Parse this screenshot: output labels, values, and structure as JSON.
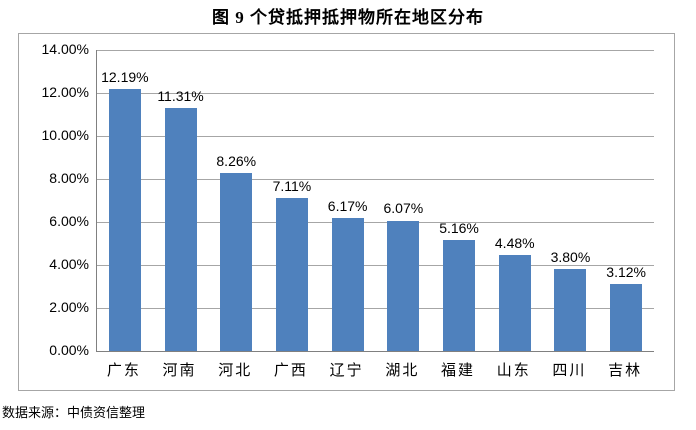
{
  "page": {
    "title": "图 9 个贷抵押抵押物所在地区分布",
    "source_note": "数据来源：中债资信整理"
  },
  "chart_data": {
    "type": "bar",
    "title": "图 9 个贷抵押抵押物所在地区分布",
    "categories": [
      "广东",
      "河南",
      "河北",
      "广西",
      "辽宁",
      "湖北",
      "福建",
      "山东",
      "四川",
      "吉林"
    ],
    "values": [
      12.19,
      11.31,
      8.26,
      7.11,
      6.17,
      6.07,
      5.16,
      4.48,
      3.8,
      3.12
    ],
    "value_labels": [
      "12.19%",
      "11.31%",
      "8.26%",
      "7.11%",
      "6.17%",
      "6.07%",
      "5.16%",
      "4.48%",
      "3.80%",
      "3.12%"
    ],
    "y_ticks": [
      "14.00%",
      "12.00%",
      "10.00%",
      "8.00%",
      "6.00%",
      "4.00%",
      "2.00%",
      "0.00%"
    ],
    "ylim": [
      0,
      14
    ],
    "xlabel": "",
    "ylabel": "",
    "grid": true,
    "legend": false,
    "source_note": "数据来源：中债资信整理",
    "colors": {
      "bar": "#4F81BD",
      "gridline": "#A6A6A6",
      "axis": "#808080",
      "frame_border": "#A6A6A6",
      "text": "#000000"
    }
  }
}
